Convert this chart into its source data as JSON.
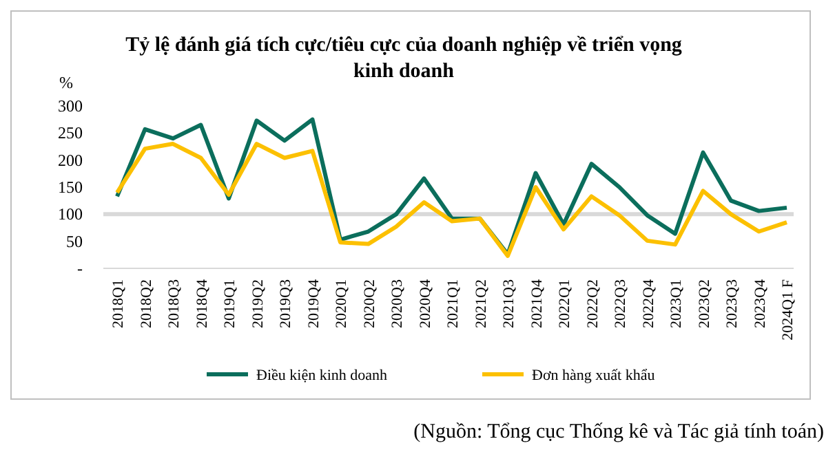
{
  "chart_data": {
    "type": "line",
    "title": "Tỷ lệ đánh giá tích cực/tiêu cực của doanh nghiệp về triển vọng kinh doanh",
    "ylabel": "%",
    "categories": [
      "2018Q1",
      "2018Q2",
      "2018Q3",
      "2018Q4",
      "2019Q1",
      "2019Q2",
      "2019Q3",
      "2019Q4",
      "2020Q1",
      "2020Q2",
      "2020Q3",
      "2020Q4",
      "2021Q1",
      "2021Q2",
      "2021Q3",
      "2021Q4",
      "2022Q1",
      "2022Q2",
      "2022Q3",
      "2022Q4",
      "2023Q1",
      "2023Q2",
      "2023Q3",
      "2023Q4",
      "2024Q1 F"
    ],
    "series": [
      {
        "name": "Điều kiện kinh doanh",
        "color": "#0b6e5c",
        "values": [
          133,
          257,
          240,
          265,
          129,
          273,
          236,
          275,
          53,
          68,
          100,
          166,
          92,
          92,
          26,
          176,
          81,
          193,
          150,
          98,
          64,
          214,
          125,
          106,
          112
        ]
      },
      {
        "name": "Đơn hàng xuất khẩu",
        "color": "#fcc000",
        "values": [
          140,
          221,
          230,
          204,
          136,
          230,
          204,
          217,
          48,
          45,
          77,
          122,
          87,
          92,
          23,
          150,
          72,
          133,
          98,
          51,
          44,
          143,
          100,
          68,
          85
        ]
      }
    ],
    "ylim": [
      0,
      300
    ],
    "yticks": [
      {
        "value": 0,
        "label": "-"
      },
      50,
      100,
      150,
      200,
      250,
      300
    ],
    "ref_lines": [
      {
        "axis": "y",
        "value": 100,
        "color": "#d9d9d9"
      }
    ],
    "grid": false,
    "legend": "bottom",
    "line_style": "solid",
    "annotations": [
      "(Nguồn: Tổng cục Thống kê và Tác giả tính toán)"
    ]
  }
}
